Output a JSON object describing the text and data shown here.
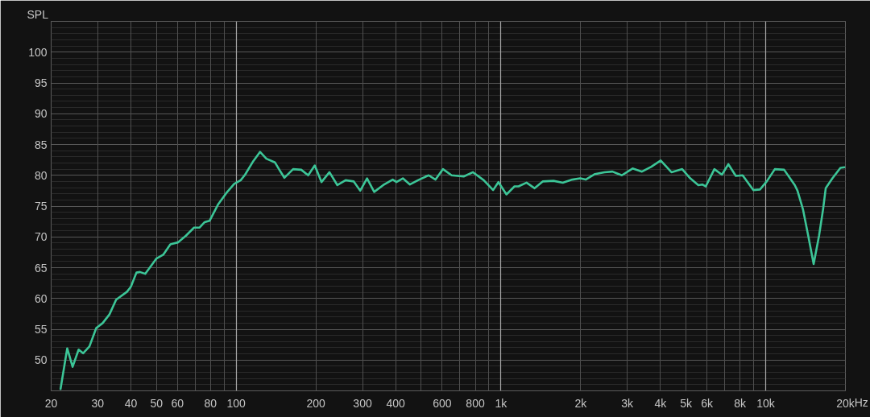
{
  "chart_data": {
    "type": "line",
    "ylabel": "SPL",
    "xlabel": "Hz",
    "log": "x",
    "grid": true,
    "line_style": "solid",
    "xlim": [
      20,
      20000
    ],
    "ylim": [
      45,
      105
    ],
    "xticks": [
      20,
      30,
      40,
      50,
      60,
      {
        "value": 70,
        "label": null
      },
      80,
      {
        "value": 90,
        "label": null
      },
      100,
      200,
      300,
      400,
      {
        "value": 500,
        "label": null
      },
      600,
      {
        "value": 700,
        "label": null
      },
      800,
      {
        "value": 900,
        "label": null
      },
      {
        "value": 1000,
        "label": "1k"
      },
      {
        "value": 2000,
        "label": "2k"
      },
      {
        "value": 3000,
        "label": "3k"
      },
      {
        "value": 4000,
        "label": "4k"
      },
      {
        "value": 5000,
        "label": "5k"
      },
      {
        "value": 6000,
        "label": "6k"
      },
      {
        "value": 7000,
        "label": null
      },
      {
        "value": 8000,
        "label": "8k"
      },
      {
        "value": 9000,
        "label": null
      },
      {
        "value": 10000,
        "label": "10k"
      },
      {
        "value": 20000,
        "label": "20k"
      }
    ],
    "yticks": [
      {
        "value": 46,
        "label": null
      },
      {
        "value": 47,
        "label": null
      },
      {
        "value": 48,
        "label": null
      },
      {
        "value": 49,
        "label": null
      },
      50,
      {
        "value": 51,
        "label": null
      },
      {
        "value": 52,
        "label": null
      },
      {
        "value": 53,
        "label": null
      },
      {
        "value": 54,
        "label": null
      },
      55,
      {
        "value": 56,
        "label": null
      },
      {
        "value": 57,
        "label": null
      },
      {
        "value": 58,
        "label": null
      },
      {
        "value": 59,
        "label": null
      },
      60,
      {
        "value": 61,
        "label": null
      },
      {
        "value": 62,
        "label": null
      },
      {
        "value": 63,
        "label": null
      },
      {
        "value": 64,
        "label": null
      },
      65,
      {
        "value": 66,
        "label": null
      },
      {
        "value": 67,
        "label": null
      },
      {
        "value": 68,
        "label": null
      },
      {
        "value": 69,
        "label": null
      },
      70,
      {
        "value": 71,
        "label": null
      },
      {
        "value": 72,
        "label": null
      },
      {
        "value": 73,
        "label": null
      },
      {
        "value": 74,
        "label": null
      },
      75,
      {
        "value": 76,
        "label": null
      },
      {
        "value": 77,
        "label": null
      },
      {
        "value": 78,
        "label": null
      },
      {
        "value": 79,
        "label": null
      },
      80,
      {
        "value": 81,
        "label": null
      },
      {
        "value": 82,
        "label": null
      },
      {
        "value": 83,
        "label": null
      },
      {
        "value": 84,
        "label": null
      },
      85,
      {
        "value": 86,
        "label": null
      },
      {
        "value": 87,
        "label": null
      },
      {
        "value": 88,
        "label": null
      },
      {
        "value": 89,
        "label": null
      },
      90,
      {
        "value": 91,
        "label": null
      },
      {
        "value": 92,
        "label": null
      },
      {
        "value": 93,
        "label": null
      },
      {
        "value": 94,
        "label": null
      },
      95,
      {
        "value": 96,
        "label": null
      },
      {
        "value": 97,
        "label": null
      },
      {
        "value": 98,
        "label": null
      },
      {
        "value": 99,
        "label": null
      },
      100,
      {
        "value": 101,
        "label": null
      },
      {
        "value": 102,
        "label": null
      },
      {
        "value": 103,
        "label": null
      },
      {
        "value": 104,
        "label": null
      }
    ],
    "series": [
      {
        "color": "#3cc597",
        "x": [
          21.7,
          23.0,
          24.1,
          25.4,
          26.4,
          27.9,
          29.6,
          31.3,
          33.2,
          35.2,
          38.7,
          40.0,
          42.0,
          43.3,
          45.3,
          50.0,
          53.0,
          56.4,
          60.2,
          64.6,
          69.3,
          72.6,
          76.0,
          79.3,
          85.5,
          91.7,
          98.3,
          104,
          108,
          116,
          123,
          130,
          140,
          146,
          152,
          164,
          176,
          187,
          198,
          210,
          225,
          241,
          259,
          278,
          294,
          312,
          332,
          359,
          390,
          403,
          426,
          453,
          486,
          533,
          566,
          604,
          651,
          723,
          784,
          861,
          934,
          978,
          1049,
          1125,
          1165,
          1249,
          1340,
          1437,
          1579,
          1712,
          1859,
          1993,
          2089,
          2265,
          2459,
          2636,
          2861,
          3141,
          3408,
          3697,
          4011,
          4405,
          4836,
          5188,
          5565,
          5764,
          5937,
          6398,
          6831,
          7225,
          7709,
          8178,
          8975,
          9512,
          10088,
          10824,
          11736,
          12876,
          13180,
          13820,
          14470,
          15170,
          15900,
          16470,
          16850,
          17860,
          19150,
          19830
        ],
        "values": [
          45.3,
          51.9,
          48.9,
          51.7,
          51.1,
          52.2,
          55.2,
          56.0,
          57.4,
          59.8,
          61.1,
          61.9,
          64.2,
          64.3,
          64.0,
          66.5,
          67.1,
          68.8,
          69.1,
          70.2,
          71.5,
          71.5,
          72.4,
          72.6,
          75.3,
          77.1,
          78.6,
          79.2,
          80.1,
          82.3,
          83.8,
          82.7,
          82.1,
          80.8,
          79.6,
          81.0,
          80.9,
          80.0,
          81.6,
          78.9,
          80.5,
          78.4,
          79.2,
          79.0,
          77.5,
          79.5,
          77.3,
          78.4,
          79.3,
          78.9,
          79.5,
          78.5,
          79.2,
          80.0,
          79.3,
          81.0,
          80.0,
          79.8,
          80.5,
          79.2,
          77.6,
          78.9,
          76.9,
          78.2,
          78.2,
          78.8,
          77.9,
          79.0,
          79.1,
          78.8,
          79.3,
          79.5,
          79.3,
          80.2,
          80.5,
          80.6,
          80.0,
          81.1,
          80.6,
          81.4,
          82.4,
          80.5,
          81.0,
          79.5,
          78.4,
          78.5,
          78.2,
          81.0,
          80.1,
          81.8,
          79.9,
          80.0,
          77.6,
          77.7,
          79.0,
          81.0,
          80.9,
          78.4,
          77.5,
          74.5,
          70.2,
          65.6,
          70.2,
          74.5,
          77.9,
          79.5,
          81.2,
          81.3
        ]
      }
    ]
  }
}
